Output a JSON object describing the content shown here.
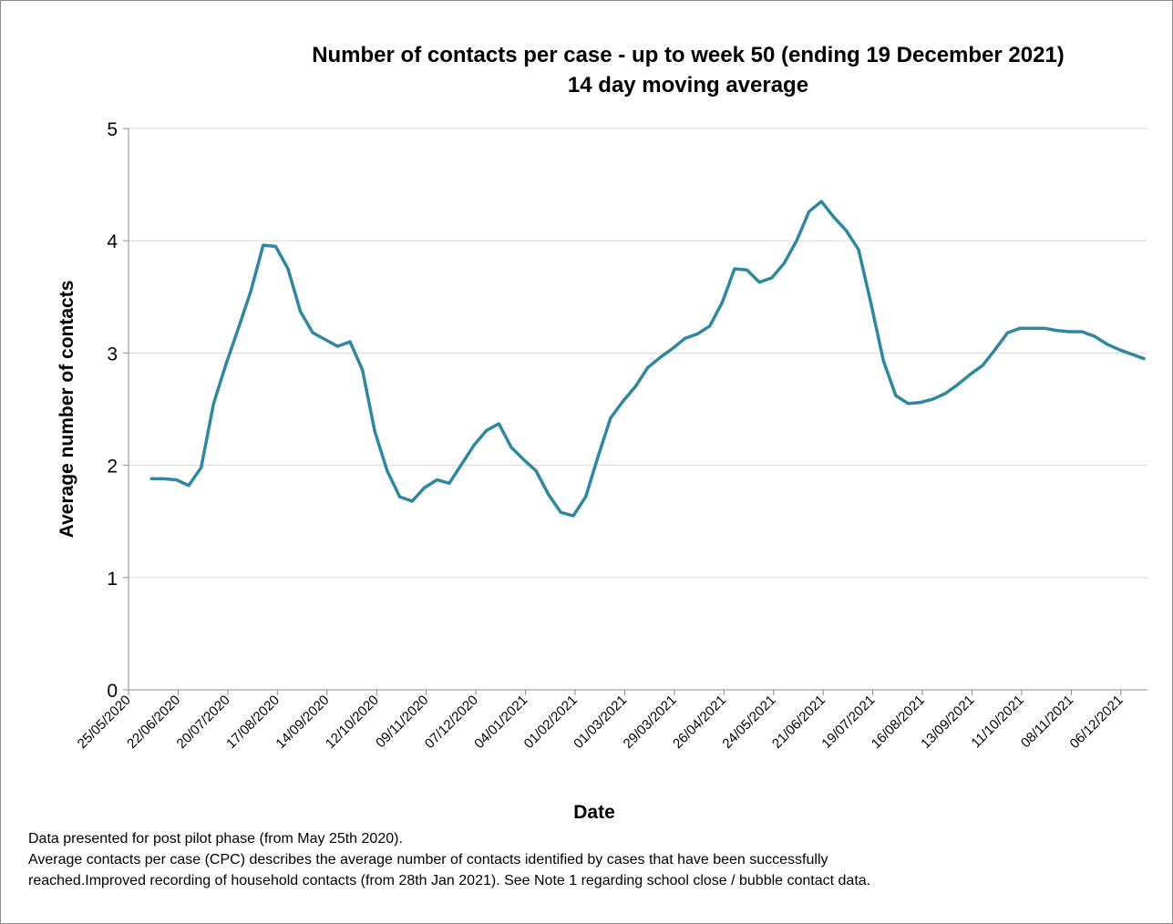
{
  "chart_data": {
    "type": "line",
    "title": "Number of contacts per case - up to week 50 (ending 19 December 2021)",
    "subtitle": "14 day moving average",
    "x_label": "Date",
    "y_label": "Average number of contacts",
    "notes": [
      "Data presented  for post pilot phase (from May 25th 2020).",
      "Average contacts per case (CPC) describes the average number of contacts identified by cases that have been successfully",
      "reached.Improved recording of household contacts (from 28th Jan 2021). See Note 1 regarding school close / bubble contact data."
    ],
    "x": [
      "07/06/2020",
      "14/06/2020",
      "21/06/2020",
      "28/06/2020",
      "05/07/2020",
      "12/07/2020",
      "19/07/2020",
      "26/07/2020",
      "02/08/2020",
      "09/08/2020",
      "16/08/2020",
      "23/08/2020",
      "30/08/2020",
      "06/09/2020",
      "13/09/2020",
      "20/09/2020",
      "27/09/2020",
      "04/10/2020",
      "11/10/2020",
      "18/10/2020",
      "25/10/2020",
      "01/11/2020",
      "08/11/2020",
      "15/11/2020",
      "22/11/2020",
      "29/11/2020",
      "06/12/2020",
      "13/12/2020",
      "20/12/2020",
      "27/12/2020",
      "03/01/2021",
      "10/01/2021",
      "17/01/2021",
      "24/01/2021",
      "31/01/2021",
      "07/02/2021",
      "14/02/2021",
      "21/02/2021",
      "28/02/2021",
      "07/03/2021",
      "14/03/2021",
      "21/03/2021",
      "28/03/2021",
      "04/04/2021",
      "11/04/2021",
      "18/04/2021",
      "25/04/2021",
      "02/05/2021",
      "09/05/2021",
      "16/05/2021",
      "23/05/2021",
      "30/05/2021",
      "06/06/2021",
      "13/06/2021",
      "20/06/2021",
      "27/06/2021",
      "04/07/2021",
      "11/07/2021",
      "18/07/2021",
      "25/07/2021",
      "01/08/2021",
      "08/08/2021",
      "15/08/2021",
      "22/08/2021",
      "29/08/2021",
      "05/09/2021",
      "12/09/2021",
      "19/09/2021",
      "26/09/2021",
      "03/10/2021",
      "10/10/2021",
      "17/10/2021",
      "24/10/2021",
      "31/10/2021",
      "07/11/2021",
      "14/11/2021",
      "21/11/2021",
      "28/11/2021",
      "05/12/2021",
      "12/12/2021",
      "19/12/2021"
    ],
    "series": [
      {
        "name": "Average number of contacts",
        "color": "#2f88a0",
        "values": [
          1.88,
          1.88,
          1.87,
          1.82,
          1.98,
          2.55,
          2.9,
          3.22,
          3.55,
          3.96,
          3.95,
          3.75,
          3.37,
          3.18,
          3.12,
          3.06,
          3.1,
          2.85,
          2.3,
          1.95,
          1.72,
          1.68,
          1.8,
          1.87,
          1.84,
          2.01,
          2.18,
          2.31,
          2.37,
          2.16,
          2.05,
          1.95,
          1.74,
          1.58,
          1.55,
          1.72,
          2.08,
          2.42,
          2.57,
          2.7,
          2.87,
          2.96,
          3.04,
          3.13,
          3.17,
          3.24,
          3.45,
          3.75,
          3.74,
          3.63,
          3.67,
          3.8,
          4.0,
          4.26,
          4.35,
          4.21,
          4.09,
          3.92,
          3.44,
          2.93,
          2.62,
          2.55,
          2.56,
          2.59,
          2.64,
          2.72,
          2.81,
          2.89,
          3.03,
          3.18,
          3.22,
          3.22,
          3.22,
          3.2,
          3.19,
          3.19,
          3.15,
          3.08,
          3.03,
          2.99,
          2.95
        ]
      }
    ],
    "xlim": [
      "25/05/2020",
      "21/12/2021"
    ],
    "xticks": [
      "25/05/2020",
      "22/06/2020",
      "20/07/2020",
      "17/08/2020",
      "14/09/2020",
      "12/10/2020",
      "09/11/2020",
      "07/12/2020",
      "04/01/2021",
      "01/02/2021",
      "01/03/2021",
      "29/03/2021",
      "26/04/2021",
      "24/05/2021",
      "21/06/2021",
      "19/07/2021",
      "16/08/2021",
      "13/09/2021",
      "11/10/2021",
      "08/11/2021",
      "06/12/2021"
    ],
    "ylim": [
      0,
      5
    ],
    "yticks": [
      0,
      1,
      2,
      3,
      4,
      5
    ],
    "grid": true
  }
}
